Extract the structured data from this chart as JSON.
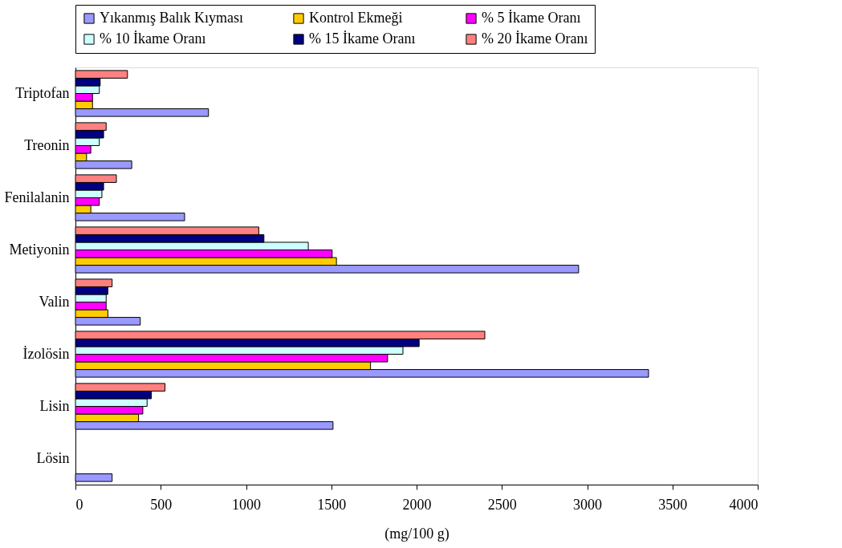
{
  "chart_data": {
    "type": "bar",
    "orientation": "horizontal",
    "xlabel": "(mg/100 g)",
    "categories": [
      "Triptofan",
      "Treonin",
      "Fenilalanin",
      "Metiyonin",
      "Valin",
      "İzolösin",
      "Lisin",
      "Lösin"
    ],
    "series": [
      {
        "name": "Yıkanmış Balık Kıyması",
        "color": "#9999ff",
        "values": [
          780,
          330,
          640,
          2950,
          380,
          3360,
          1510,
          215
        ]
      },
      {
        "name": "Kontrol Ekmeği",
        "color": "#ffcc00",
        "values": [
          100,
          65,
          90,
          1530,
          190,
          1730,
          370,
          null
        ]
      },
      {
        "name": "% 5 İkame Oranı",
        "color": "#ff00ff",
        "values": [
          100,
          90,
          140,
          1505,
          180,
          1830,
          395,
          null
        ]
      },
      {
        "name": "% 10 İkame Oranı",
        "color": "#ccffff",
        "values": [
          140,
          140,
          155,
          1365,
          180,
          1920,
          420,
          null
        ]
      },
      {
        "name": "% 15 İkame Oranı",
        "color": "#000080",
        "values": [
          145,
          165,
          165,
          1105,
          190,
          2015,
          445,
          null
        ]
      },
      {
        "name": "% 20 İkame Oranı",
        "color": "#ff8080",
        "values": [
          305,
          180,
          240,
          1075,
          215,
          2400,
          525,
          null
        ]
      }
    ],
    "xlim": [
      0,
      4000
    ],
    "xticks": [
      0,
      500,
      1000,
      1500,
      2000,
      2500,
      3000,
      3500,
      4000
    ],
    "grid": false,
    "legend": "top"
  }
}
